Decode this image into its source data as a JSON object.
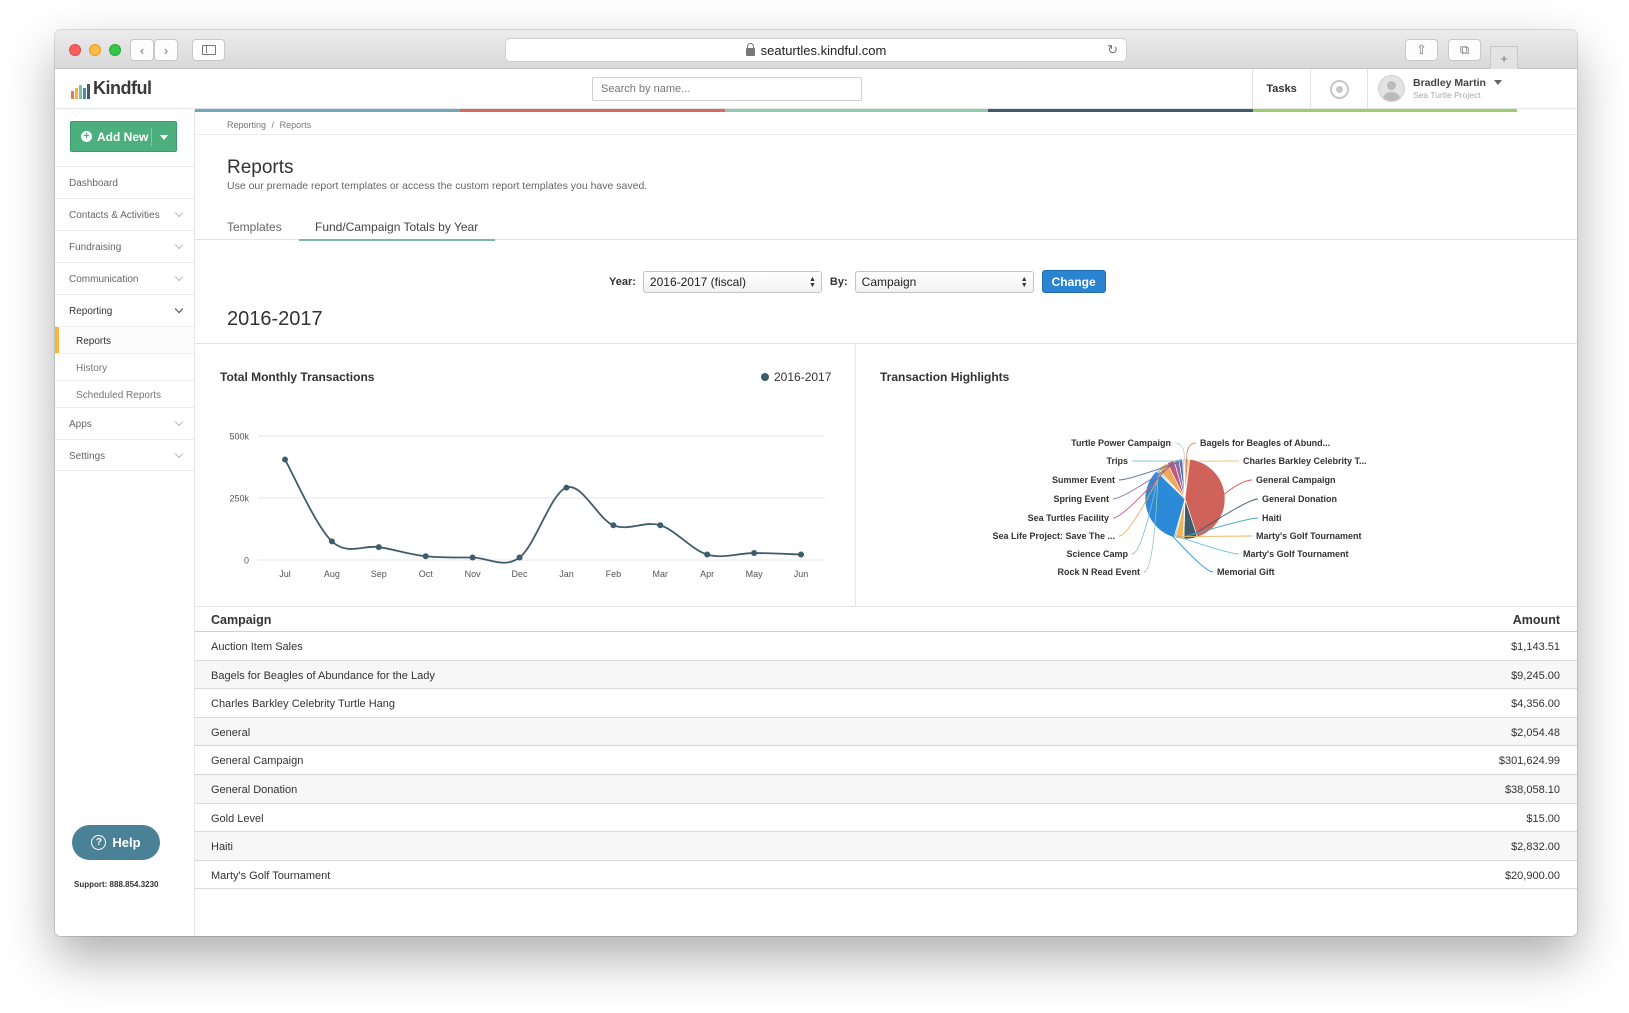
{
  "browser": {
    "url": "seaturtles.kindful.com"
  },
  "header": {
    "logo_text": "Kindful",
    "search_placeholder": "Search by name...",
    "tasks_label": "Tasks",
    "user_name": "Bradley Martin",
    "user_org": "Sea Turtle Project"
  },
  "sidebar": {
    "add_new_label": "Add New",
    "items": {
      "dashboard": "Dashboard",
      "contacts": "Contacts & Activities",
      "fundraising": "Fundraising",
      "communication": "Communication",
      "reporting": "Reporting",
      "reports": "Reports",
      "history": "History",
      "scheduled": "Scheduled Reports",
      "apps": "Apps",
      "settings": "Settings"
    },
    "help_label": "Help",
    "support_text": "Support: 888.854.3230"
  },
  "page": {
    "breadcrumb_1": "Reporting",
    "breadcrumb_sep": "/",
    "breadcrumb_2": "Reports",
    "title": "Reports",
    "subtitle": "Use our premade report templates or access the custom report templates you have saved.",
    "tabs": {
      "templates": "Templates",
      "fund_campaign": "Fund/Campaign Totals by Year"
    },
    "filters": {
      "year_label": "Year:",
      "year_value": "2016-2017 (fiscal)",
      "by_label": "By:",
      "by_value": "Campaign",
      "change_label": "Change"
    },
    "year_heading": "2016-2017"
  },
  "chart_data": [
    {
      "type": "line",
      "title": "Total Monthly Transactions",
      "series": [
        {
          "name": "2016-2017",
          "values": [
            405000,
            75000,
            52000,
            15000,
            10000,
            10000,
            292000,
            140000,
            140000,
            22000,
            28000,
            22000
          ]
        }
      ],
      "categories": [
        "Jul",
        "Aug",
        "Sep",
        "Oct",
        "Nov",
        "Dec",
        "Jan",
        "Feb",
        "Mar",
        "Apr",
        "May",
        "Jun"
      ],
      "ylim": [
        0,
        500000
      ],
      "yticks": [
        {
          "value": 500000,
          "label": "500k"
        },
        {
          "value": 250000,
          "label": "250k"
        },
        {
          "value": 0,
          "label": "0"
        }
      ],
      "line_color": "#3e5c6b",
      "grid": true,
      "legend": "top-right"
    },
    {
      "type": "pie",
      "title": "Transaction Highlights",
      "slices": [
        {
          "label": "Bagels for Beagles of Abund...",
          "value": 9245.0,
          "color": "#e78d4a"
        },
        {
          "label": "Charles Barkley Celebrity T...",
          "value": 4356.0,
          "color": "#f4c27a"
        },
        {
          "label": "General Campaign",
          "value": 301624.99,
          "color": "#d0625c"
        },
        {
          "label": "General Donation",
          "value": 38058.1,
          "color": "#3e5c6b"
        },
        {
          "label": "Haiti",
          "value": 2832.0,
          "color": "#4fa7c9"
        },
        {
          "label": "Marty's Golf Tournament",
          "value": 20900.0,
          "color": "#f2b45a"
        },
        {
          "label": "Marty's Golf Tournament",
          "value": 4500.0,
          "color": "#6fc0dc"
        },
        {
          "label": "Memorial Gift",
          "value": 230000.0,
          "color": "#2d8ad8"
        },
        {
          "label": "Rock N Read Event",
          "value": 3000.0,
          "color": "#8bc4a8"
        },
        {
          "label": "Science Camp",
          "value": 5000.0,
          "color": "#7ab6d8"
        },
        {
          "label": "Sea Life Project: Save The ...",
          "value": 30000.0,
          "color": "#f0a958"
        },
        {
          "label": "Sea Turtles Facility",
          "value": 20000.0,
          "color": "#c25a7c"
        },
        {
          "label": "Spring Event",
          "value": 14000.0,
          "color": "#8a6fb0"
        },
        {
          "label": "Summer Event",
          "value": 10000.0,
          "color": "#5b6f9c"
        },
        {
          "label": "Trips",
          "value": 4000.0,
          "color": "#88c3d8"
        },
        {
          "label": "Turtle Power Campaign",
          "value": 3000.0,
          "color": "#b7d8e4"
        }
      ]
    }
  ],
  "table": {
    "col_campaign": "Campaign",
    "col_amount": "Amount",
    "rows": [
      {
        "campaign": "Auction Item Sales",
        "amount": "$1,143.51"
      },
      {
        "campaign": "Bagels for Beagles of Abundance for the Lady",
        "amount": "$9,245.00"
      },
      {
        "campaign": "Charles Barkley Celebrity Turtle Hang",
        "amount": "$4,356.00"
      },
      {
        "campaign": "General",
        "amount": "$2,054.48"
      },
      {
        "campaign": "General Campaign",
        "amount": "$301,624.99"
      },
      {
        "campaign": "General Donation",
        "amount": "$38,058.10"
      },
      {
        "campaign": "Gold Level",
        "amount": "$15.00"
      },
      {
        "campaign": "Haiti",
        "amount": "$2,832.00"
      },
      {
        "campaign": "Marty's Golf Tournament",
        "amount": "$20,900.00"
      }
    ]
  },
  "colors": {
    "accent_green": "#4caf7d",
    "accent_blue": "#2b84d1",
    "help_button": "#4b8196",
    "active_marker": "#f5b43c",
    "stripe": [
      "#70a9b5",
      "#d76860",
      "#8fcbb0",
      "#3e5c6b",
      "#9bcf6d"
    ],
    "logo_bars": [
      "#e8774b",
      "#f2b240",
      "#78c4a3",
      "#4d8aa6",
      "#3e5c6b"
    ]
  }
}
